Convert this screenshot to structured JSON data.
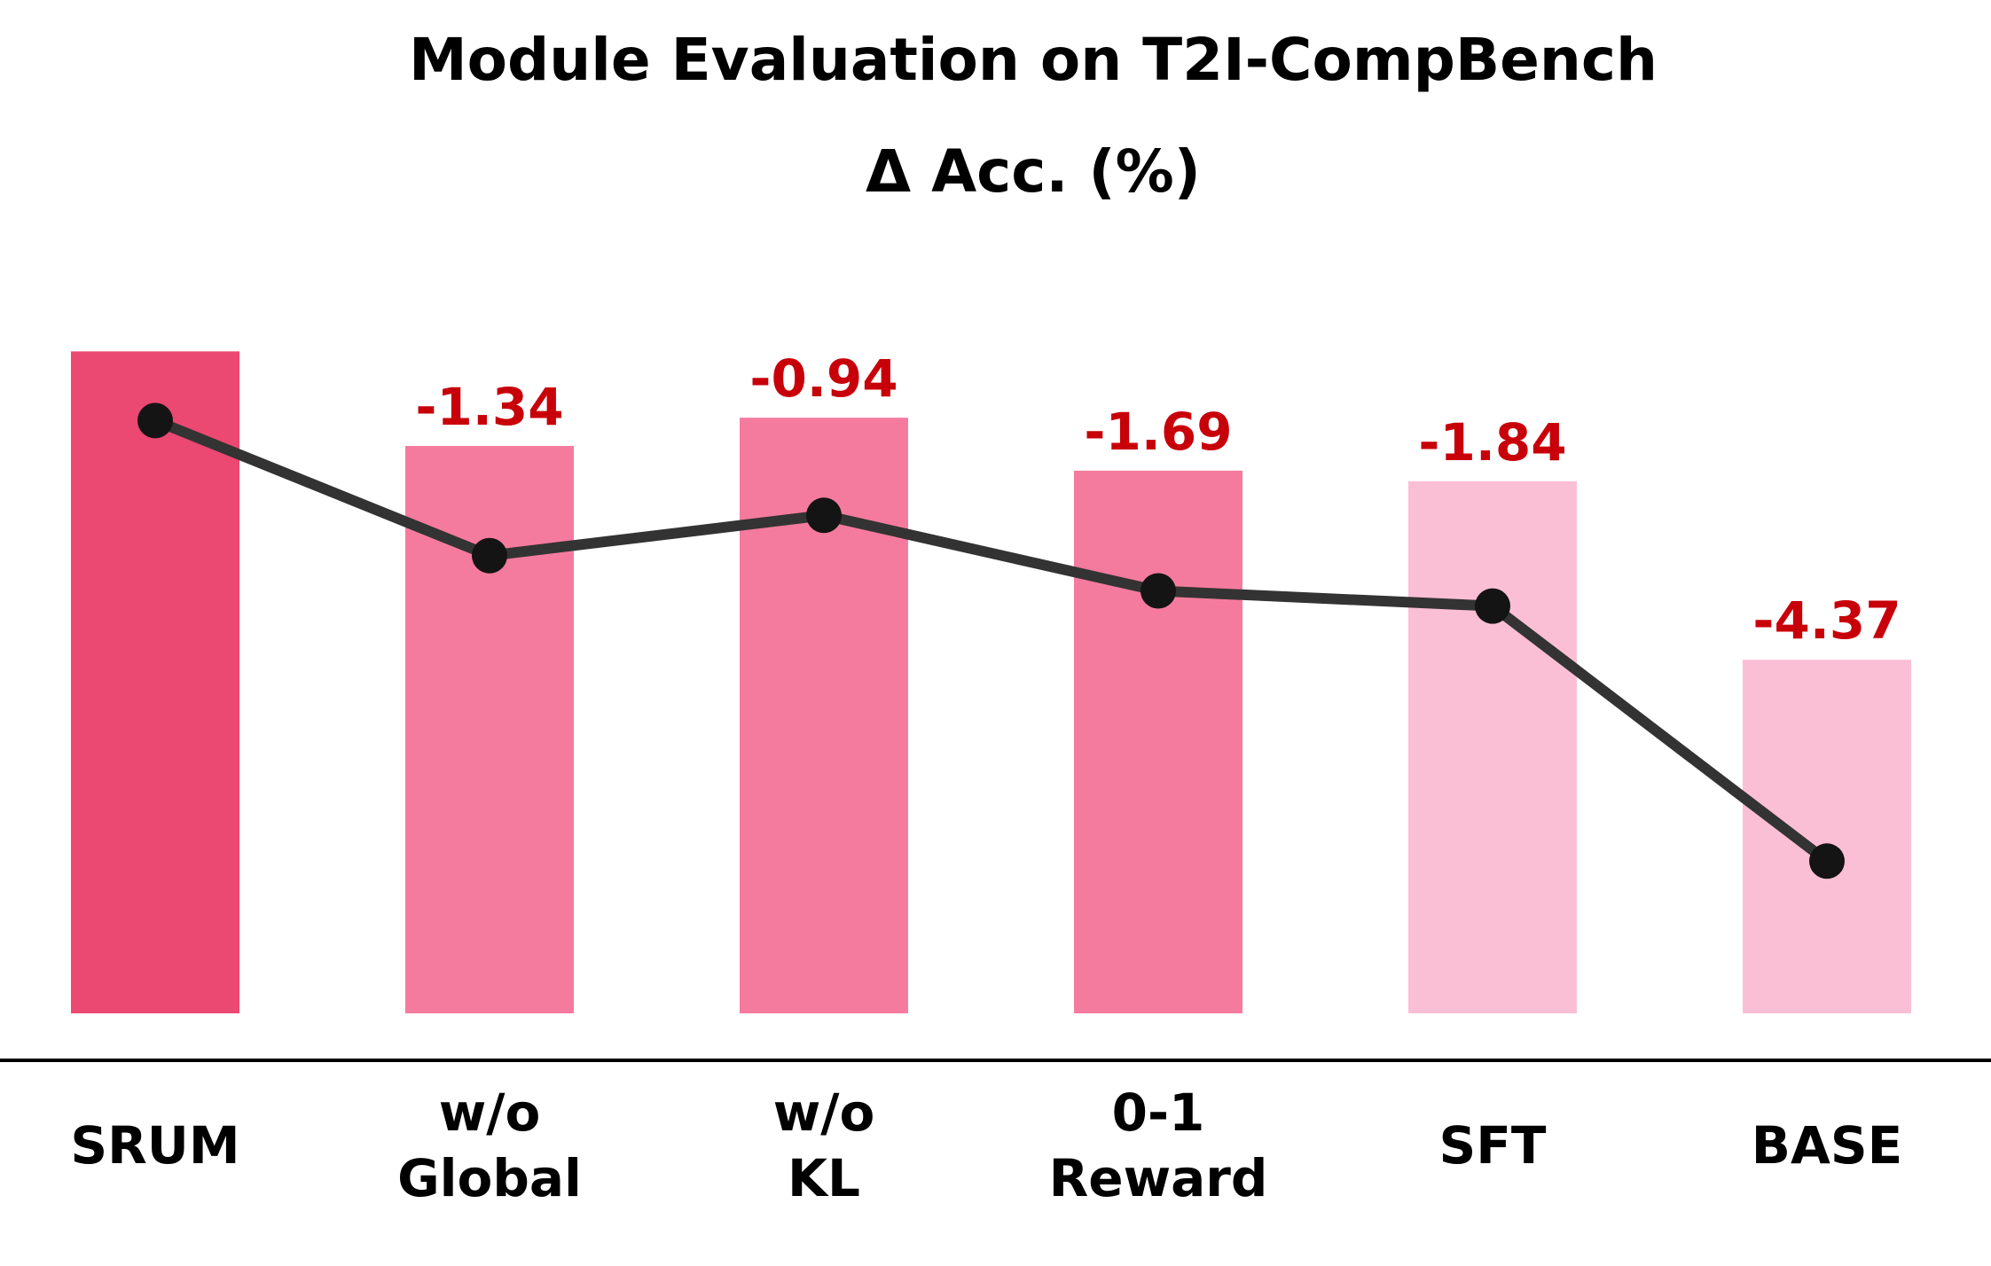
{
  "chart_data": {
    "type": "bar",
    "title": "Module Evaluation on T2I-CompBench",
    "subtitle": "Δ Acc. (%)",
    "categories": [
      [
        "SRUM"
      ],
      [
        "w/o",
        "Global"
      ],
      [
        "w/o",
        "KL"
      ],
      [
        "0-1",
        "Reward"
      ],
      [
        "SFT"
      ],
      [
        "BASE"
      ]
    ],
    "delta_labels": [
      "",
      "-1.34",
      "-0.94",
      "-1.69",
      "-1.84",
      "-4.37"
    ],
    "deltas": [
      0,
      -1.34,
      -0.94,
      -1.69,
      -1.84,
      -4.37
    ],
    "bar_colors": [
      "#eb4872",
      "#f57b9e",
      "#f57b9e",
      "#f57b9e",
      "#fbbfd5",
      "#fbbfd5"
    ],
    "line_color": "#333333",
    "point_color": "#141414",
    "label_color": "#c8000a",
    "baseline_color": "#000000",
    "ylim": [
      -9.38,
      0.62
    ],
    "line_ylim": [
      -5.88,
      1.12
    ],
    "grid": false,
    "legend": "none"
  }
}
